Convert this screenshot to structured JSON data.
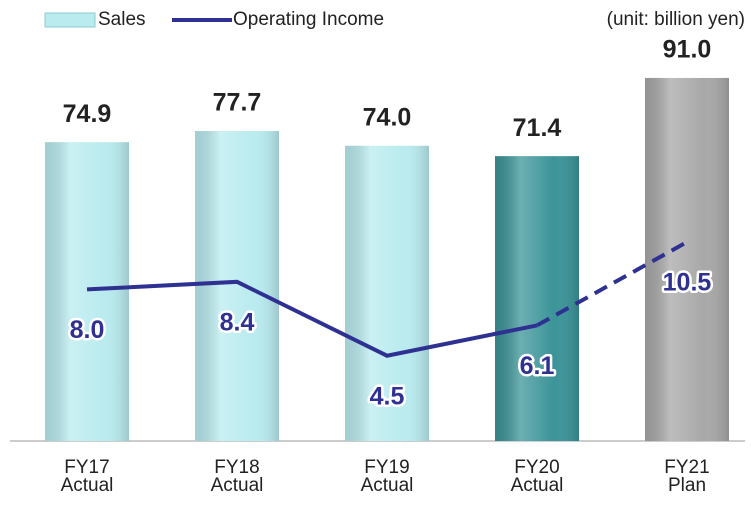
{
  "chart_data": {
    "type": "bar_line",
    "unit_note": "(unit: billion yen)",
    "categories": [
      [
        "FY17",
        "Actual"
      ],
      [
        "FY18",
        "Actual"
      ],
      [
        "FY19",
        "Actual"
      ],
      [
        "FY20",
        "Actual"
      ],
      [
        "FY21",
        "Plan"
      ]
    ],
    "ylim": [
      0,
      95
    ],
    "y2lim": [
      0,
      20
    ],
    "series": [
      {
        "name": "Sales",
        "type": "bar",
        "colors": [
          "#b9ebef",
          "#b9ebef",
          "#b9ebef",
          "#3b9498",
          "#a8a8a8"
        ],
        "values": [
          74.9,
          77.7,
          74.0,
          71.4,
          91.0
        ],
        "value_labels": [
          "74.9",
          "77.7",
          "74.0",
          "71.4",
          "91.0"
        ]
      },
      {
        "name": "Operating Income",
        "type": "line",
        "axis": "y2",
        "color": "#2e3192",
        "dashed_from": 3,
        "values": [
          8.0,
          8.4,
          4.5,
          6.1,
          10.5
        ],
        "value_labels": [
          "8.0",
          "8.4",
          "4.5",
          "6.1",
          "10.5"
        ]
      }
    ]
  }
}
